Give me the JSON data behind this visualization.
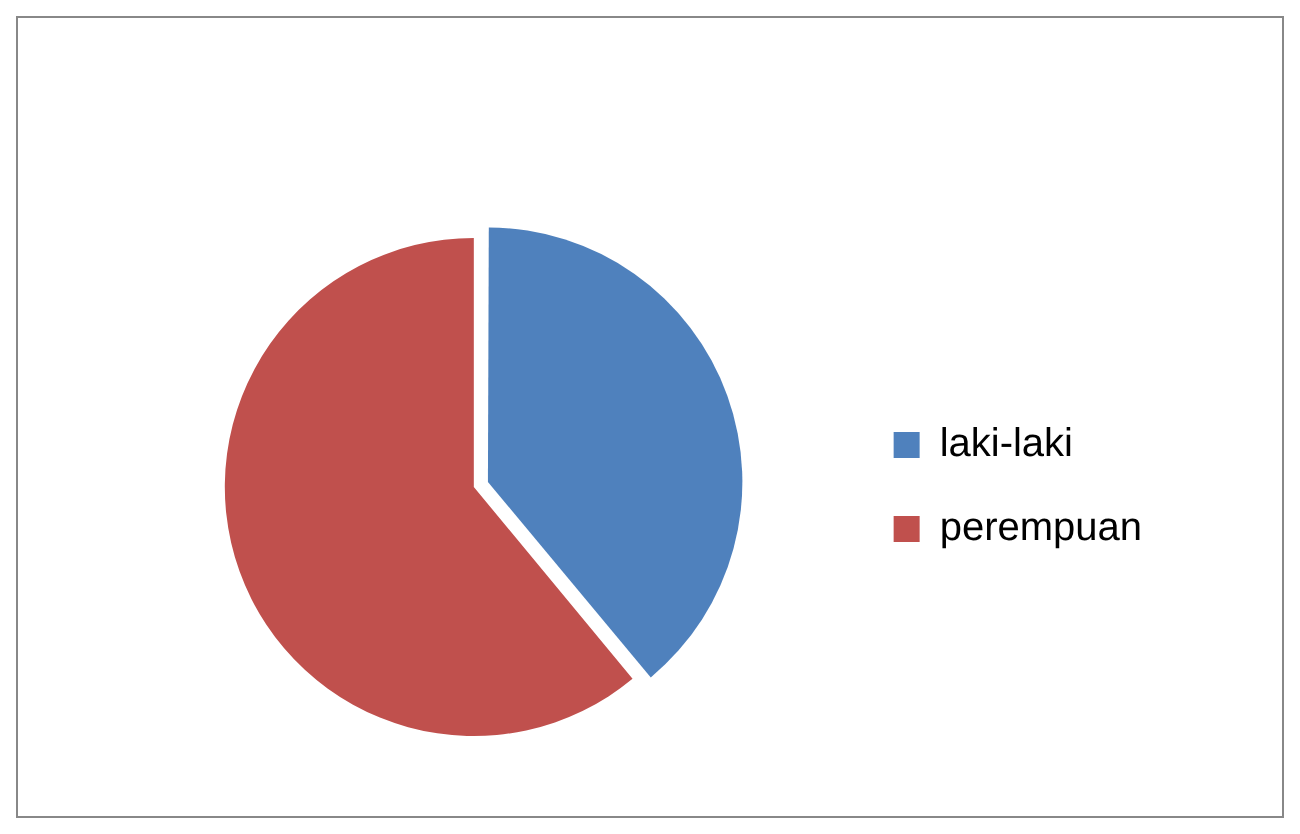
{
  "chart_data": {
    "type": "pie",
    "categories": [
      "laki-laki",
      "perempuan"
    ],
    "values": [
      39,
      61
    ],
    "colors": [
      "#4f81bd",
      "#c0504d"
    ],
    "legend": "right"
  }
}
